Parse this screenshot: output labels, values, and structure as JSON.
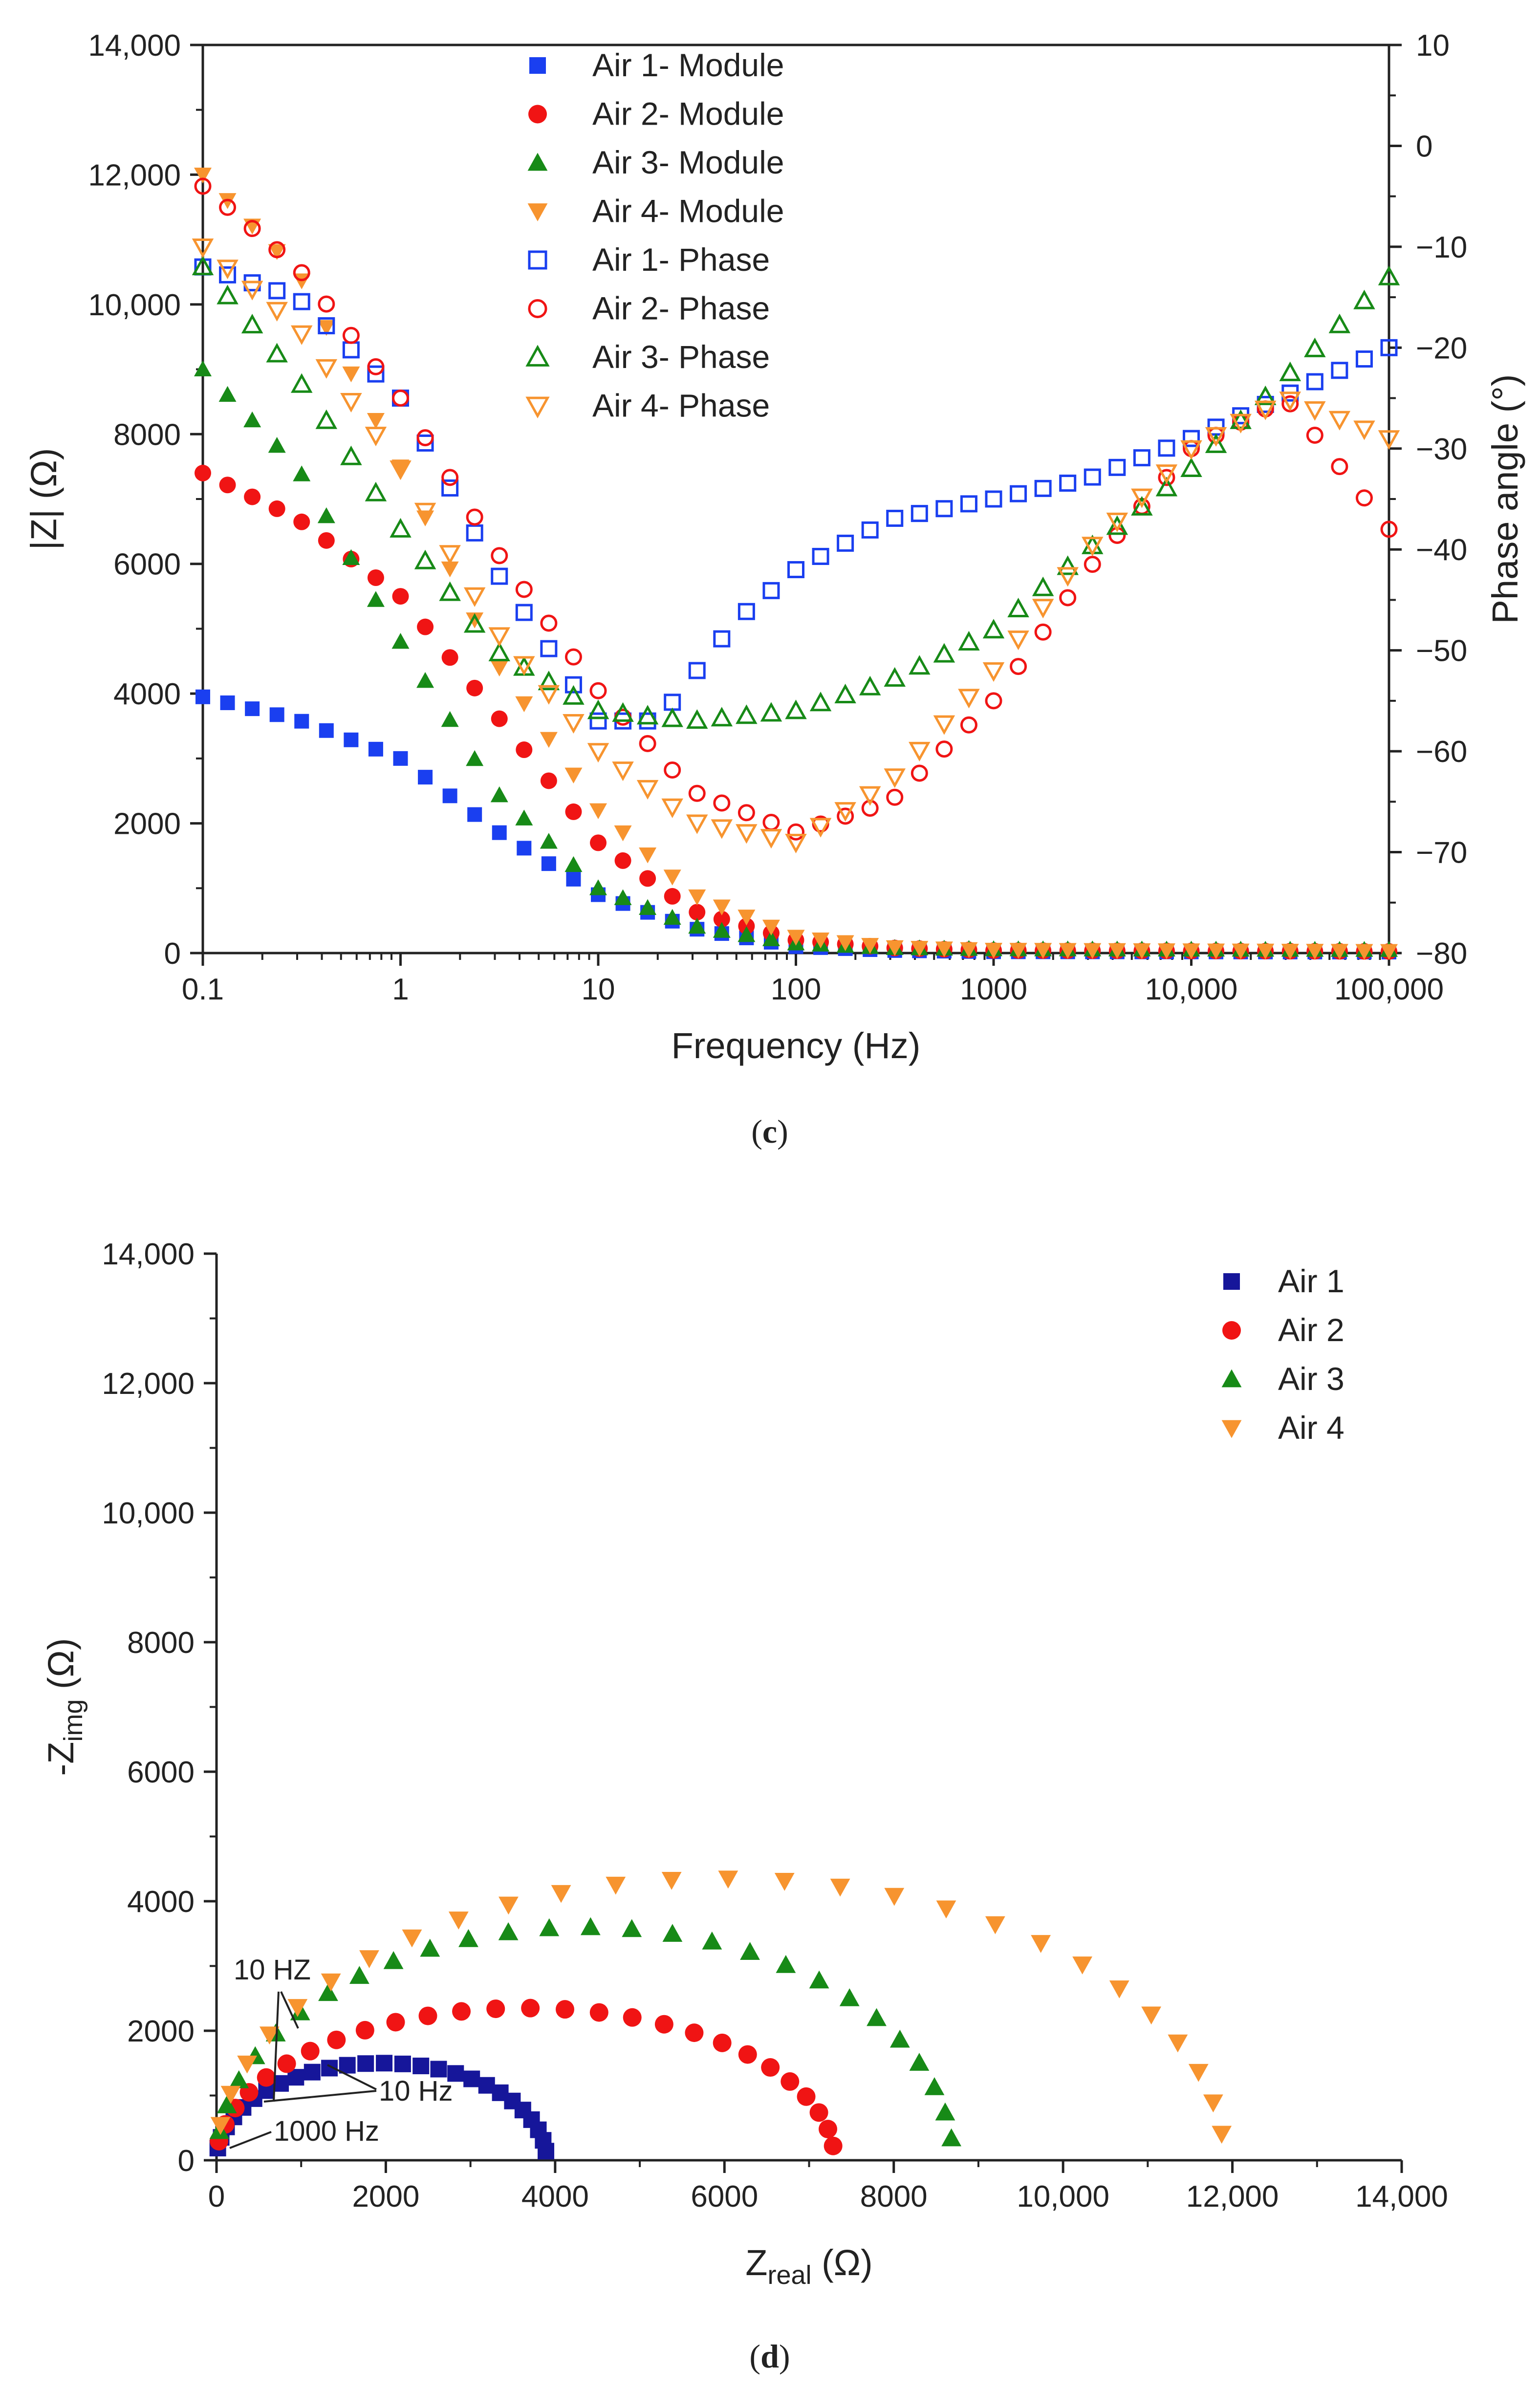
{
  "chart_data": [
    {
      "panel": "(c)",
      "type": "scatter",
      "title": "",
      "xlabel": "Frequency (Hz)",
      "ylabel": "|Z| (Ω)",
      "y2label": "Phase angle (°)",
      "xscale": "log",
      "xlim": [
        0.1,
        100000
      ],
      "ylim": [
        0,
        14000
      ],
      "y2lim": [
        -80,
        10
      ],
      "x_ticks": [
        0.1,
        1,
        10,
        100,
        1000,
        10000,
        100000
      ],
      "x_tick_labels": [
        "0.1",
        "1",
        "10",
        "100",
        "1000",
        "10,000",
        "100,000"
      ],
      "y_ticks": [
        0,
        2000,
        4000,
        6000,
        8000,
        10000,
        12000,
        14000
      ],
      "y_tick_labels": [
        "0",
        "2000",
        "4000",
        "6000",
        "8000",
        "10,000",
        "12,000",
        "14,000"
      ],
      "y2_ticks": [
        -80,
        -70,
        -60,
        -50,
        -40,
        -30,
        -20,
        -10,
        0,
        10
      ],
      "y2_tick_labels": [
        "−80",
        "−70",
        "−60",
        "−50",
        "−40",
        "−30",
        "−20",
        "−10",
        "0",
        "10"
      ],
      "legend_position": "top-center",
      "series": [
        {
          "name": "Air 1- Module",
          "axis": "left",
          "marker": "square",
          "filled": true,
          "color": "#1a3ff0",
          "points": [
            [
              0.1,
              3950
            ],
            [
              0.3,
              3600
            ],
            [
              1,
              3000
            ],
            [
              3,
              1900
            ],
            [
              10,
              900
            ],
            [
              30,
              380
            ],
            [
              100,
              100
            ],
            [
              300,
              40
            ],
            [
              1000,
              20
            ],
            [
              100000,
              15
            ]
          ]
        },
        {
          "name": "Air 2- Module",
          "axis": "left",
          "marker": "circle",
          "filled": true,
          "color": "#f01414",
          "points": [
            [
              0.1,
              7400
            ],
            [
              0.3,
              6700
            ],
            [
              1,
              5500
            ],
            [
              3,
              3700
            ],
            [
              10,
              1700
            ],
            [
              30,
              650
            ],
            [
              100,
              200
            ],
            [
              300,
              80
            ],
            [
              1000,
              40
            ],
            [
              100000,
              25
            ]
          ]
        },
        {
          "name": "Air 3- Module",
          "axis": "left",
          "marker": "triangle-up",
          "filled": true,
          "color": "#178a17",
          "points": [
            [
              0.1,
              9000
            ],
            [
              0.3,
              7500
            ],
            [
              1,
              4800
            ],
            [
              3,
              2500
            ],
            [
              10,
              1000
            ],
            [
              30,
              420
            ],
            [
              100,
              150
            ],
            [
              300,
              80
            ],
            [
              1000,
              60
            ],
            [
              100000,
              50
            ]
          ]
        },
        {
          "name": "Air 4- Module",
          "axis": "left",
          "marker": "triangle-down",
          "filled": true,
          "color": "#f7942f",
          "points": [
            [
              0.1,
              12000
            ],
            [
              0.3,
              10500
            ],
            [
              1,
              7500
            ],
            [
              3,
              4500
            ],
            [
              10,
              2200
            ],
            [
              30,
              900
            ],
            [
              100,
              250
            ],
            [
              300,
              90
            ],
            [
              1000,
              50
            ],
            [
              100000,
              30
            ]
          ]
        },
        {
          "name": "Air 1- Phase",
          "axis": "right",
          "marker": "square",
          "filled": false,
          "color": "#1a3ff0",
          "points": [
            [
              0.1,
              -12
            ],
            [
              0.3,
              -15
            ],
            [
              1,
              -25
            ],
            [
              3,
              -42
            ],
            [
              10,
              -57
            ],
            [
              20,
              -57
            ],
            [
              50,
              -47
            ],
            [
              100,
              -42
            ],
            [
              300,
              -37
            ],
            [
              1000,
              -35
            ],
            [
              3000,
              -33
            ],
            [
              10000,
              -29
            ],
            [
              100000,
              -20
            ]
          ]
        },
        {
          "name": "Air 2- Phase",
          "axis": "right",
          "marker": "circle",
          "filled": false,
          "color": "#f01414",
          "points": [
            [
              0.1,
              -4
            ],
            [
              0.3,
              -12
            ],
            [
              1,
              -25
            ],
            [
              3,
              -40
            ],
            [
              10,
              -54
            ],
            [
              30,
              -64
            ],
            [
              100,
              -68
            ],
            [
              300,
              -65
            ],
            [
              1000,
              -55
            ],
            [
              3000,
              -42
            ],
            [
              10000,
              -30
            ],
            [
              30000,
              -25
            ],
            [
              100000,
              -38
            ]
          ]
        },
        {
          "name": "Air 3- Phase",
          "axis": "right",
          "marker": "triangle-up",
          "filled": false,
          "color": "#178a17",
          "points": [
            [
              0.1,
              -12
            ],
            [
              0.3,
              -23
            ],
            [
              1,
              -38
            ],
            [
              3,
              -50
            ],
            [
              10,
              -56
            ],
            [
              30,
              -57
            ],
            [
              100,
              -56
            ],
            [
              300,
              -53
            ],
            [
              1000,
              -48
            ],
            [
              3000,
              -40
            ],
            [
              10000,
              -32
            ],
            [
              100000,
              -13
            ]
          ]
        },
        {
          "name": "Air 4- Phase",
          "axis": "right",
          "marker": "triangle-down",
          "filled": false,
          "color": "#f7942f",
          "points": [
            [
              0.1,
              -10
            ],
            [
              0.3,
              -18
            ],
            [
              1,
              -32
            ],
            [
              3,
              -48
            ],
            [
              10,
              -60
            ],
            [
              30,
              -67
            ],
            [
              100,
              -69
            ],
            [
              300,
              -63
            ],
            [
              1000,
              -52
            ],
            [
              3000,
              -40
            ],
            [
              10000,
              -30
            ],
            [
              30000,
              -25
            ],
            [
              100000,
              -29
            ]
          ]
        }
      ]
    },
    {
      "panel": "(d)",
      "type": "scatter",
      "title": "",
      "xlabel": "Zreal (Ω)",
      "ylabel": "-Zimg (Ω)",
      "xlim": [
        0,
        14000
      ],
      "ylim": [
        0,
        14000
      ],
      "x_ticks": [
        0,
        2000,
        4000,
        6000,
        8000,
        10000,
        12000,
        14000
      ],
      "x_tick_labels": [
        "0",
        "2000",
        "4000",
        "6000",
        "8000",
        "10,000",
        "12,000",
        "14,000"
      ],
      "y_ticks": [
        0,
        2000,
        4000,
        6000,
        8000,
        10000,
        12000,
        14000
      ],
      "y_tick_labels": [
        "0",
        "2000",
        "4000",
        "6000",
        "8000",
        "10,000",
        "12,000",
        "14,000"
      ],
      "legend_position": "top-right",
      "annotations": [
        "10 HZ",
        "10 Hz",
        "1000 Hz"
      ],
      "series": [
        {
          "name": "Air 1",
          "marker": "square",
          "color": "#16169a",
          "radius": 1950,
          "real_max": 3900,
          "peak": 1500
        },
        {
          "name": "Air 2",
          "marker": "circle",
          "color": "#f01414",
          "radius": 3650,
          "real_max": 7300,
          "peak": 2350
        },
        {
          "name": "Air 3",
          "marker": "triangle-up",
          "color": "#178a17",
          "radius": 4600,
          "real_max": 8700,
          "peak": 3600
        },
        {
          "name": "Air 4",
          "marker": "triangle-down",
          "color": "#f7942f",
          "radius": 6000,
          "real_max": 11900,
          "peak": 4350
        }
      ]
    }
  ],
  "captions": {
    "c": "c",
    "d": "d"
  }
}
